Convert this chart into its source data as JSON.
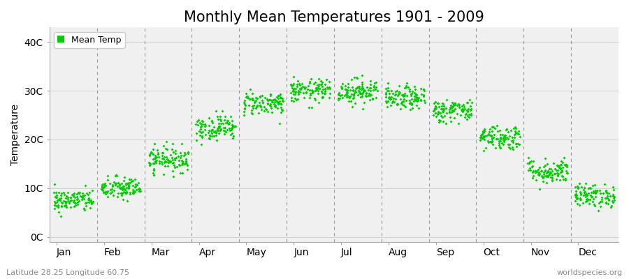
{
  "title": "Monthly Mean Temperatures 1901 - 2009",
  "ylabel": "Temperature",
  "xlabel_bottom_left": "Latitude 28.25 Longitude 60.75",
  "xlabel_bottom_right": "worldspecies.org",
  "months": [
    "Jan",
    "Feb",
    "Mar",
    "Apr",
    "May",
    "Jun",
    "Jul",
    "Aug",
    "Sep",
    "Oct",
    "Nov",
    "Dec"
  ],
  "ytick_labels": [
    "0C",
    "10C",
    "20C",
    "30C",
    "40C"
  ],
  "ytick_values": [
    0,
    10,
    20,
    30,
    40
  ],
  "ylim": [
    -1,
    43
  ],
  "dot_color": "#00cc00",
  "bg_color": "#ffffff",
  "plot_bg_color": "#f0f0f0",
  "mean_temps": [
    7.5,
    10.0,
    16.0,
    22.5,
    27.5,
    30.0,
    30.0,
    28.5,
    26.0,
    20.5,
    13.5,
    8.5
  ],
  "std_temps": [
    1.2,
    1.2,
    1.3,
    1.3,
    1.2,
    1.2,
    1.3,
    1.2,
    1.2,
    1.3,
    1.3,
    1.2
  ],
  "n_years": 109,
  "legend_label": "Mean Temp",
  "title_fontsize": 15,
  "axis_label_fontsize": 10,
  "tick_fontsize": 10,
  "legend_fontsize": 9,
  "dot_size": 4
}
